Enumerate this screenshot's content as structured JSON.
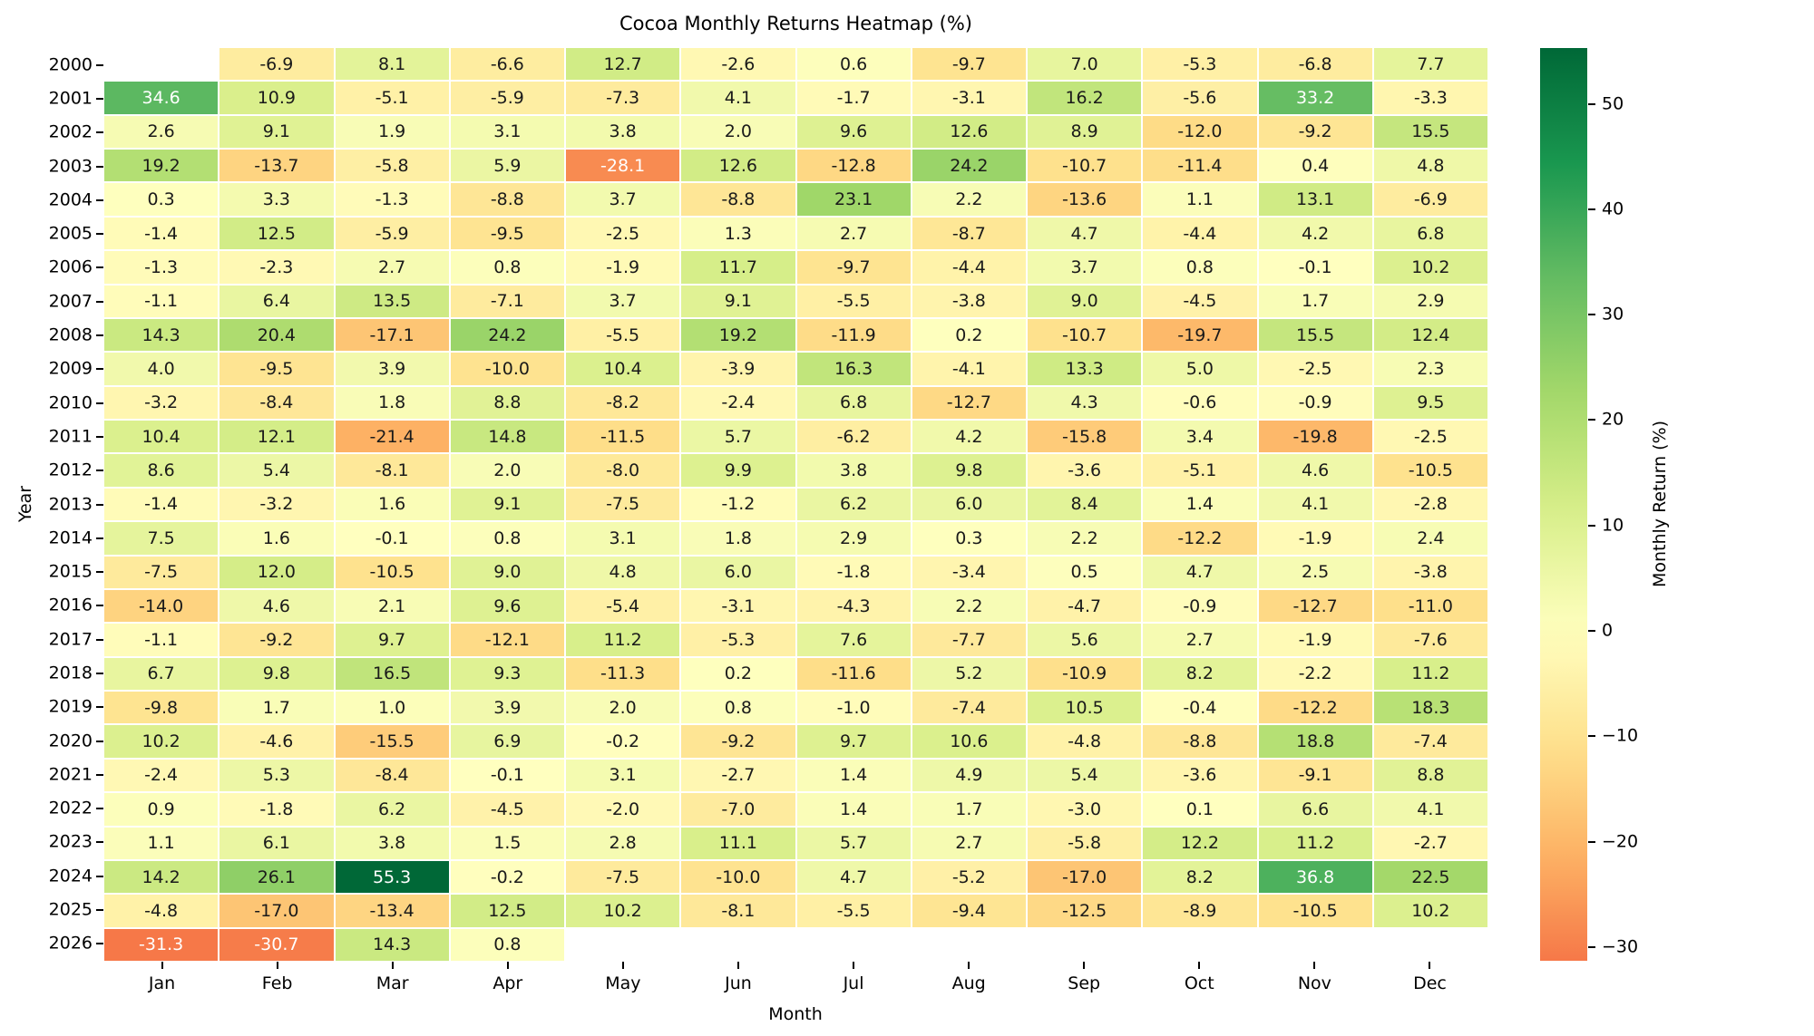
{
  "figure": {
    "background": "#ffffff"
  },
  "chart_data": {
    "type": "heatmap",
    "title": "Cocoa Monthly Returns Heatmap (%)",
    "xlabel": "Month",
    "ylabel": "Year",
    "legend_position": "right-colorbar",
    "grid_line_color": "#ffffff",
    "columns": [
      "Jan",
      "Feb",
      "Mar",
      "Apr",
      "May",
      "Jun",
      "Jul",
      "Aug",
      "Sep",
      "Oct",
      "Nov",
      "Dec"
    ],
    "rows": [
      "2000",
      "2001",
      "2002",
      "2003",
      "2004",
      "2005",
      "2006",
      "2007",
      "2008",
      "2009",
      "2010",
      "2011",
      "2012",
      "2013",
      "2014",
      "2015",
      "2016",
      "2017",
      "2018",
      "2019",
      "2020",
      "2021",
      "2022",
      "2023",
      "2024",
      "2025",
      "2026"
    ],
    "values": [
      [
        null,
        -6.9,
        8.1,
        -6.6,
        12.7,
        -2.6,
        0.6,
        -9.7,
        7.0,
        -5.3,
        -6.8,
        7.7
      ],
      [
        34.6,
        10.9,
        -5.1,
        -5.9,
        -7.3,
        4.1,
        -1.7,
        -3.1,
        16.2,
        -5.6,
        33.2,
        -3.3
      ],
      [
        2.6,
        9.1,
        1.9,
        3.1,
        3.8,
        2.0,
        9.6,
        12.6,
        8.9,
        -12.0,
        -9.2,
        15.5
      ],
      [
        19.2,
        -13.7,
        -5.8,
        5.9,
        -28.1,
        12.6,
        -12.8,
        24.2,
        -10.7,
        -11.4,
        0.4,
        4.8
      ],
      [
        0.3,
        3.3,
        -1.3,
        -8.8,
        3.7,
        -8.8,
        23.1,
        2.2,
        -13.6,
        1.1,
        13.1,
        -6.9
      ],
      [
        -1.4,
        12.5,
        -5.9,
        -9.5,
        -2.5,
        1.3,
        2.7,
        -8.7,
        4.7,
        -4.4,
        4.2,
        6.8
      ],
      [
        -1.3,
        -2.3,
        2.7,
        0.8,
        -1.9,
        11.7,
        -9.7,
        -4.4,
        3.7,
        0.8,
        -0.1,
        10.2
      ],
      [
        -1.1,
        6.4,
        13.5,
        -7.1,
        3.7,
        9.1,
        -5.5,
        -3.8,
        9.0,
        -4.5,
        1.7,
        2.9
      ],
      [
        14.3,
        20.4,
        -17.1,
        24.2,
        -5.5,
        19.2,
        -11.9,
        0.2,
        -10.7,
        -19.7,
        15.5,
        12.4
      ],
      [
        4.0,
        -9.5,
        3.9,
        -10.0,
        10.4,
        -3.9,
        16.3,
        -4.1,
        13.3,
        5.0,
        -2.5,
        2.3
      ],
      [
        -3.2,
        -8.4,
        1.8,
        8.8,
        -8.2,
        -2.4,
        6.8,
        -12.7,
        4.3,
        -0.6,
        -0.9,
        9.5
      ],
      [
        10.4,
        12.1,
        -21.4,
        14.8,
        -11.5,
        5.7,
        -6.2,
        4.2,
        -15.8,
        3.4,
        -19.8,
        -2.5
      ],
      [
        8.6,
        5.4,
        -8.1,
        2.0,
        -8.0,
        9.9,
        3.8,
        9.8,
        -3.6,
        -5.1,
        4.6,
        -10.5
      ],
      [
        -1.4,
        -3.2,
        1.6,
        9.1,
        -7.5,
        -1.2,
        6.2,
        6.0,
        8.4,
        1.4,
        4.1,
        -2.8
      ],
      [
        7.5,
        1.6,
        -0.1,
        0.8,
        3.1,
        1.8,
        2.9,
        0.3,
        2.2,
        -12.2,
        -1.9,
        2.4
      ],
      [
        -7.5,
        12.0,
        -10.5,
        9.0,
        4.8,
        6.0,
        -1.8,
        -3.4,
        0.5,
        4.7,
        2.5,
        -3.8
      ],
      [
        -14.0,
        4.6,
        2.1,
        9.6,
        -5.4,
        -3.1,
        -4.3,
        2.2,
        -4.7,
        -0.9,
        -12.7,
        -11.0
      ],
      [
        -1.1,
        -9.2,
        9.7,
        -12.1,
        11.2,
        -5.3,
        7.6,
        -7.7,
        5.6,
        2.7,
        -1.9,
        -7.6
      ],
      [
        6.7,
        9.8,
        16.5,
        9.3,
        -11.3,
        0.2,
        -11.6,
        5.2,
        -10.9,
        8.2,
        -2.2,
        11.2
      ],
      [
        -9.8,
        1.7,
        1.0,
        3.9,
        2.0,
        0.8,
        -1.0,
        -7.4,
        10.5,
        -0.4,
        -12.2,
        18.3
      ],
      [
        10.2,
        -4.6,
        -15.5,
        6.9,
        -0.2,
        -9.2,
        9.7,
        10.6,
        -4.8,
        -8.8,
        18.8,
        -7.4
      ],
      [
        -2.4,
        5.3,
        -8.4,
        -0.1,
        3.1,
        -2.7,
        1.4,
        4.9,
        5.4,
        -3.6,
        -9.1,
        8.8
      ],
      [
        0.9,
        -1.8,
        6.2,
        -4.5,
        -2.0,
        -7.0,
        1.4,
        1.7,
        -3.0,
        0.1,
        6.6,
        4.1
      ],
      [
        1.1,
        6.1,
        3.8,
        1.5,
        2.8,
        11.1,
        5.7,
        2.7,
        -5.8,
        12.2,
        11.2,
        -2.7
      ],
      [
        14.2,
        26.1,
        55.3,
        -0.2,
        -7.5,
        -10.0,
        4.7,
        -5.2,
        -17.0,
        8.2,
        36.8,
        22.5
      ],
      [
        -4.8,
        -17.0,
        -13.4,
        12.5,
        10.2,
        -8.1,
        -5.5,
        -9.4,
        -12.5,
        -8.9,
        -10.5,
        10.2
      ],
      [
        -31.3,
        -30.7,
        14.3,
        0.8,
        null,
        null,
        null,
        null,
        null,
        null,
        null,
        null
      ]
    ],
    "colormap": {
      "name": "RdYlGn",
      "anchors": [
        "#a50026",
        "#d73027",
        "#f46d43",
        "#fdae61",
        "#fee08b",
        "#ffffbf",
        "#d9ef8b",
        "#a6d96a",
        "#66bd63",
        "#1a9850",
        "#006837"
      ],
      "value_min": -55.3,
      "value_max": 55.3
    },
    "colorbar": {
      "label": "Monthly Return (%)",
      "display_min": -31.3,
      "display_max": 55.3,
      "ticks": [
        {
          "value": 50,
          "label": "50"
        },
        {
          "value": 40,
          "label": "40"
        },
        {
          "value": 30,
          "label": "30"
        },
        {
          "value": 20,
          "label": "20"
        },
        {
          "value": 10,
          "label": "10"
        },
        {
          "value": 0,
          "label": "0"
        },
        {
          "value": -10,
          "label": "−10"
        },
        {
          "value": -20,
          "label": "−20"
        },
        {
          "value": -30,
          "label": "−30"
        }
      ]
    }
  }
}
